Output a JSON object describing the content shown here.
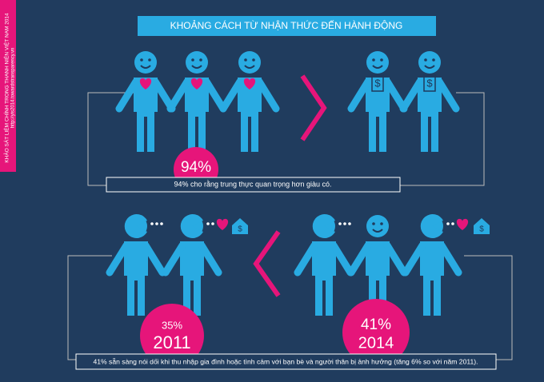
{
  "header": {
    "title": "KHOẢNG CÁCH TỪ NHẬN THỨC ĐẾN HÀNH ĐỘNG"
  },
  "sidebar": {
    "survey": "KHẢO SÁT LIÊM CHÍNH TRONG THANH NIÊN VIỆT NAM 2014",
    "url": "http://yis2014.towardstransparency.vn"
  },
  "top": {
    "percent": "94%",
    "caption": "94% cho rằng trung thực quan trọng hơn giàu có."
  },
  "bottom": {
    "left": {
      "percent": "35%",
      "year": "2011"
    },
    "right": {
      "percent": "41%",
      "year": "2014"
    },
    "caption": "41% sẵn sàng nói dối khi thu nhập gia đình hoặc tình cảm với bạn bè và người thân bị ảnh hưởng (tăng 6% so với năm 2011)."
  }
}
